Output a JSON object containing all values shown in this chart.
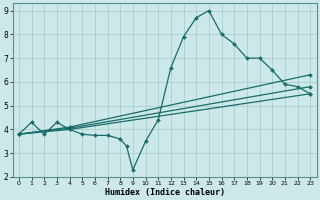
{
  "xlabel": "Humidex (Indice chaleur)",
  "bg_color": "#cce8e8",
  "grid_color": "#aacfcf",
  "line_color": "#1a6b6b",
  "xlim": [
    -0.5,
    23.5
  ],
  "ylim": [
    2,
    9.3
  ],
  "xticks": [
    0,
    1,
    2,
    3,
    4,
    5,
    6,
    7,
    8,
    9,
    10,
    11,
    12,
    13,
    14,
    15,
    16,
    17,
    18,
    19,
    20,
    21,
    22,
    23
  ],
  "yticks": [
    2,
    3,
    4,
    5,
    6,
    7,
    8,
    9
  ],
  "lines": [
    {
      "x": [
        0,
        1,
        2,
        3,
        4,
        5,
        6,
        7,
        8,
        8.5,
        9,
        10,
        11,
        12,
        13,
        14,
        15,
        16,
        17,
        18,
        19,
        20,
        21,
        22,
        23
      ],
      "y": [
        3.8,
        4.3,
        3.8,
        4.3,
        4.0,
        3.8,
        3.75,
        3.75,
        3.6,
        3.3,
        2.3,
        3.5,
        4.4,
        6.6,
        7.9,
        8.7,
        9.0,
        8.0,
        7.6,
        7.0,
        7.0,
        6.5,
        5.9,
        5.8,
        5.5
      ]
    },
    {
      "x": [
        0,
        4,
        23
      ],
      "y": [
        3.8,
        4.1,
        6.3
      ]
    },
    {
      "x": [
        0,
        4,
        23
      ],
      "y": [
        3.8,
        4.05,
        5.8
      ]
    },
    {
      "x": [
        0,
        4,
        23
      ],
      "y": [
        3.8,
        4.0,
        5.5
      ]
    }
  ]
}
